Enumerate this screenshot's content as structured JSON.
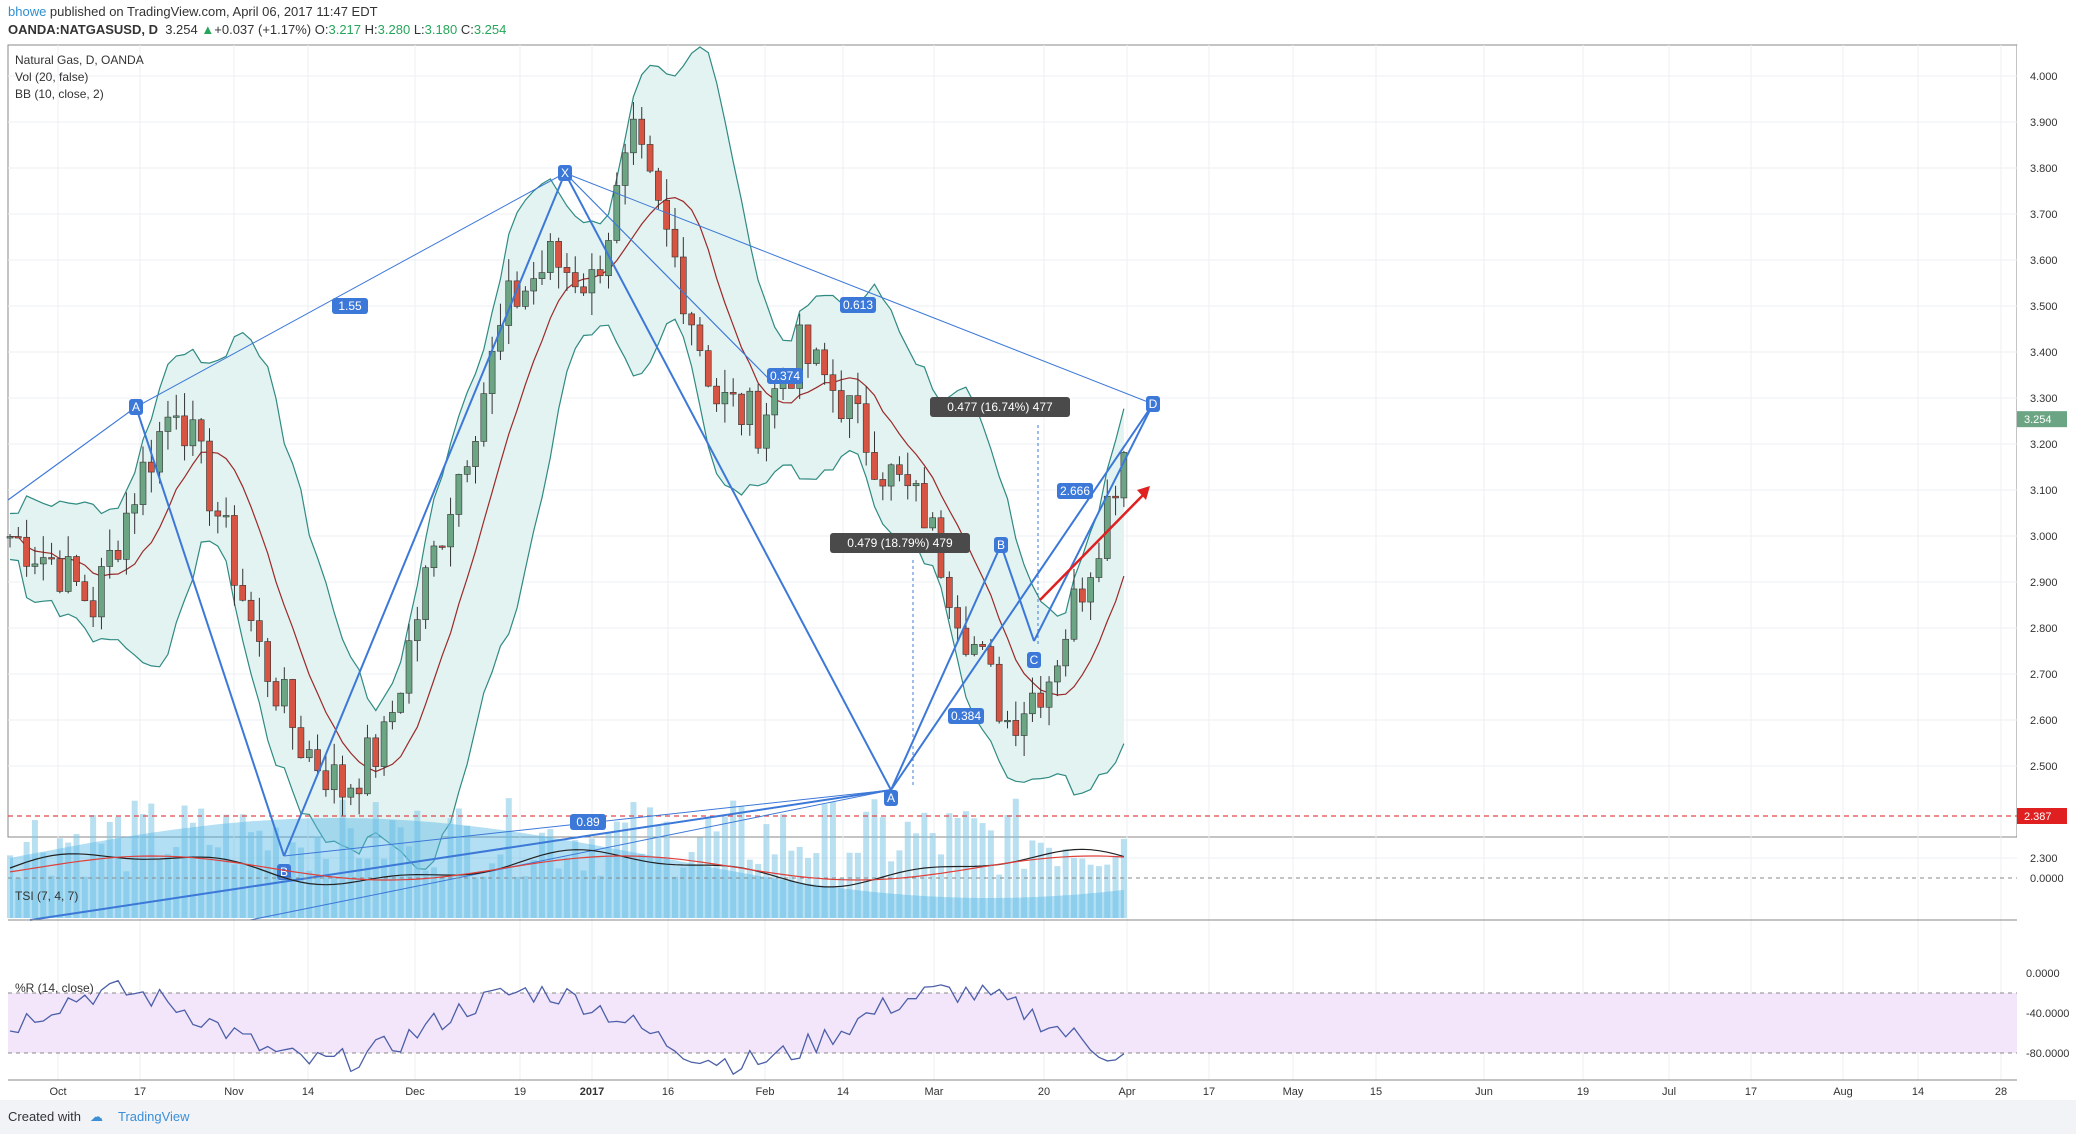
{
  "header": {
    "author": "bhowe",
    "published_text": " published on TradingView.com, April 06, 2017 11:47 EDT",
    "symbol": "OANDA:NATGASUSD, D",
    "last": "3.254",
    "change": "+0.037 (+1.17%)",
    "o_label": "O:",
    "o": "3.217",
    "h_label": "H:",
    "h": "3.280",
    "l_label": "L:",
    "l": "3.180",
    "c_label": "C:",
    "c": "3.254"
  },
  "legend": {
    "line1": "Natural Gas, D, OANDA",
    "line2": "Vol (20, false)",
    "line3": "BB (10, close, 2)"
  },
  "footer": {
    "created_with": "Created with",
    "brand": "TradingView"
  },
  "colors": {
    "up": "#6ba583",
    "down": "#d75442",
    "pattern": "#3c78d8",
    "volume": "#7fc6e6",
    "bb_fill": "#e3f3f1",
    "wr_fill": "#f3e6fb"
  },
  "chart_data": [
    {
      "type": "candlestick",
      "title": "Natural Gas, D, OANDA",
      "ylim": [
        2.25,
        4.05
      ],
      "y_ticks": [
        "4.000",
        "3.900",
        "3.800",
        "3.700",
        "3.600",
        "3.500",
        "3.400",
        "3.300",
        "3.200",
        "3.100",
        "3.000",
        "2.900",
        "2.800",
        "2.700",
        "2.600",
        "2.500",
        "2.300"
      ],
      "x_ticks": [
        "Oct",
        "17",
        "Nov",
        "14",
        "Dec",
        "19",
        "2017",
        "16",
        "Feb",
        "14",
        "Mar",
        "20",
        "Apr",
        "17",
        "May",
        "15",
        "Jun",
        "19",
        "Jul",
        "17",
        "Aug",
        "14",
        "28"
      ],
      "last_price_label": "3.254",
      "hline_label": "2.387",
      "hline_value": 2.387,
      "close_path": [
        {
          "d": "2016-09-26",
          "c": 3.0
        },
        {
          "d": "2016-10-03",
          "c": 2.95
        },
        {
          "d": "2016-10-10",
          "c": 2.85
        },
        {
          "d": "2016-10-17",
          "c": 3.1
        },
        {
          "d": "2016-10-24",
          "c": 3.3
        },
        {
          "d": "2016-10-31",
          "c": 3.05
        },
        {
          "d": "2016-11-07",
          "c": 2.75
        },
        {
          "d": "2016-11-14",
          "c": 2.55
        },
        {
          "d": "2016-11-21",
          "c": 2.45
        },
        {
          "d": "2016-11-28",
          "c": 2.55
        },
        {
          "d": "2016-12-05",
          "c": 2.9
        },
        {
          "d": "2016-12-12",
          "c": 3.2
        },
        {
          "d": "2016-12-19",
          "c": 3.5
        },
        {
          "d": "2016-12-26",
          "c": 3.6
        },
        {
          "d": "2017-01-02",
          "c": 3.55
        },
        {
          "d": "2017-01-09",
          "c": 3.85
        },
        {
          "d": "2017-01-16",
          "c": 3.6
        },
        {
          "d": "2017-01-23",
          "c": 3.3
        },
        {
          "d": "2017-01-30",
          "c": 3.25
        },
        {
          "d": "2017-02-06",
          "c": 3.4
        },
        {
          "d": "2017-02-13",
          "c": 3.3
        },
        {
          "d": "2017-02-20",
          "c": 3.15
        },
        {
          "d": "2017-02-27",
          "c": 3.05
        },
        {
          "d": "2017-03-06",
          "c": 2.8
        },
        {
          "d": "2017-03-13",
          "c": 2.6
        },
        {
          "d": "2017-03-20",
          "c": 2.7
        },
        {
          "d": "2017-03-27",
          "c": 2.95
        },
        {
          "d": "2017-04-03",
          "c": 3.254
        }
      ],
      "annotations": [
        {
          "text": "X",
          "value": 3.85
        },
        {
          "text": "A",
          "value": 3.38
        },
        {
          "text": "B",
          "value": 2.38
        },
        {
          "text": "A",
          "value": 2.53
        },
        {
          "text": "B",
          "value": 3.05
        },
        {
          "text": "C",
          "value": 2.85
        },
        {
          "text": "D",
          "value": 3.35
        },
        {
          "text": "1.55"
        },
        {
          "text": "0.613"
        },
        {
          "text": "0.374"
        },
        {
          "text": "2.666"
        },
        {
          "text": "0.384"
        },
        {
          "text": "0.89"
        },
        {
          "text": "0.477 (16.74%) 477"
        },
        {
          "text": "0.479 (18.79%) 479"
        }
      ]
    },
    {
      "type": "line",
      "title": "TSI (7, 4, 7)",
      "y_ticks": [
        "0.0000"
      ]
    },
    {
      "type": "line",
      "title": "%R (14, close)",
      "y_ticks": [
        "0.0000",
        "-40.0000",
        "-80.0000"
      ],
      "ylim": [
        -100,
        0
      ]
    }
  ]
}
